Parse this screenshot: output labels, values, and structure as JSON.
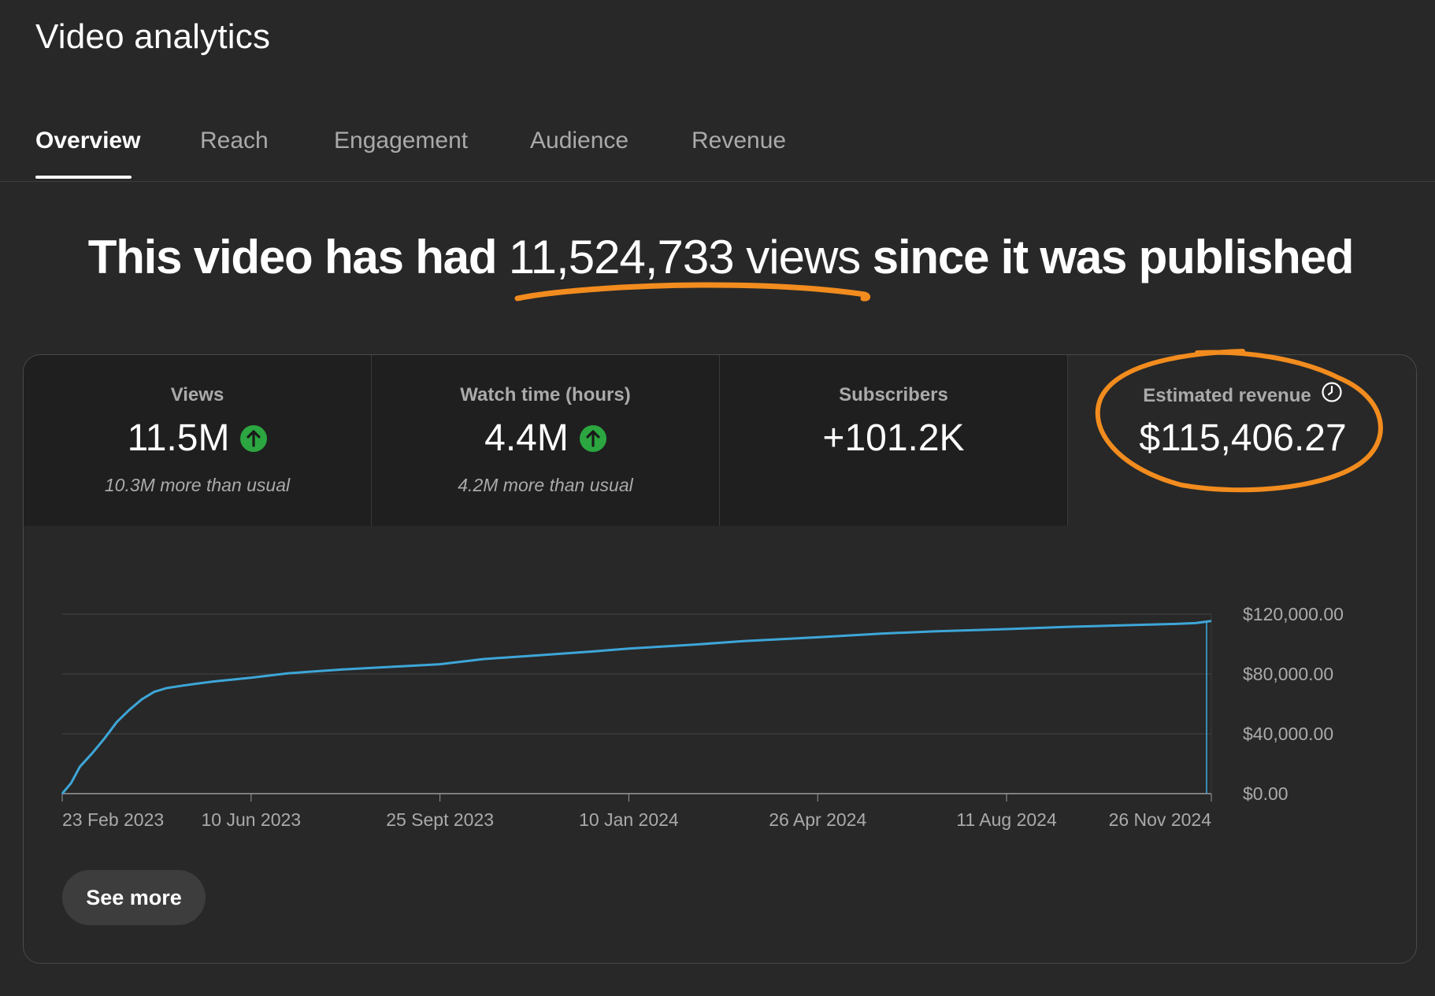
{
  "page": {
    "title": "Video analytics"
  },
  "tabs": [
    {
      "label": "Overview",
      "active": true
    },
    {
      "label": "Reach",
      "active": false
    },
    {
      "label": "Engagement",
      "active": false
    },
    {
      "label": "Audience",
      "active": false
    },
    {
      "label": "Revenue",
      "active": false
    }
  ],
  "headline": {
    "prefix": "This video has had ",
    "views": "11,524,733 views",
    "suffix": " since it was published"
  },
  "metrics": [
    {
      "label": "Views",
      "value": "11.5M",
      "trend": "up",
      "sub": "10.3M more than usual"
    },
    {
      "label": "Watch time (hours)",
      "value": "4.4M",
      "trend": "up",
      "sub": "4.2M more than usual"
    },
    {
      "label": "Subscribers",
      "value": "+101.2K",
      "trend": "",
      "sub": ""
    },
    {
      "label": "Estimated revenue",
      "value": "$115,406.27",
      "trend": "",
      "sub": "",
      "icon": "clock-icon",
      "selected": true
    }
  ],
  "colors": {
    "background": "#282828",
    "line": "#3ea6d8",
    "trend_up": "#2ba640",
    "annotation": "#f28c1e"
  },
  "chart_data": {
    "type": "line",
    "title": "",
    "xlabel": "",
    "ylabel": "",
    "y_axis_position": "right",
    "ylim": [
      0,
      120000
    ],
    "y_ticks": [
      0,
      40000,
      80000,
      120000
    ],
    "y_tick_labels": [
      "$0.00",
      "$40,000.00",
      "$80,000.00",
      "$120,000.00"
    ],
    "x_tick_labels": [
      "23 Feb 2023",
      "10 Jun 2023",
      "25 Sept 2023",
      "10 Jan 2024",
      "26 Apr 2024",
      "11 Aug 2024",
      "26 Nov 2024"
    ],
    "grid": true,
    "series": [
      {
        "x": [
          "2023-02-23",
          "2023-02-28",
          "2023-03-05",
          "2023-03-12",
          "2023-03-19",
          "2023-03-26",
          "2023-04-02",
          "2023-04-09",
          "2023-04-16",
          "2023-04-23",
          "2023-05-01",
          "2023-05-10",
          "2023-05-20",
          "2023-06-10",
          "2023-07-01",
          "2023-08-01",
          "2023-09-01",
          "2023-09-25",
          "2023-10-20",
          "2023-11-20",
          "2023-12-20",
          "2024-01-10",
          "2024-02-15",
          "2024-03-15",
          "2024-04-26",
          "2024-06-01",
          "2024-07-01",
          "2024-08-11",
          "2024-09-15",
          "2024-10-15",
          "2024-11-15",
          "2024-11-26",
          "2024-12-05"
        ],
        "y": [
          0,
          7000,
          18000,
          27000,
          37000,
          48000,
          56000,
          63000,
          68000,
          70500,
          72000,
          73500,
          75000,
          77500,
          80500,
          83000,
          85000,
          86500,
          90000,
          92500,
          95000,
          97000,
          99500,
          102000,
          104500,
          107000,
          108500,
          110000,
          111500,
          112500,
          113500,
          114000,
          115406.27
        ]
      }
    ]
  }
}
